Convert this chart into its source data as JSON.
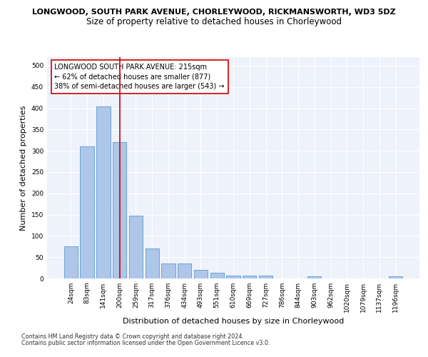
{
  "title": "LONGWOOD, SOUTH PARK AVENUE, CHORLEYWOOD, RICKMANSWORTH, WD3 5DZ",
  "subtitle": "Size of property relative to detached houses in Chorleywood",
  "xlabel": "Distribution of detached houses by size in Chorleywood",
  "ylabel": "Number of detached properties",
  "categories": [
    "24sqm",
    "83sqm",
    "141sqm",
    "200sqm",
    "259sqm",
    "317sqm",
    "376sqm",
    "434sqm",
    "493sqm",
    "551sqm",
    "610sqm",
    "669sqm",
    "727sqm",
    "786sqm",
    "844sqm",
    "903sqm",
    "962sqm",
    "1020sqm",
    "1079sqm",
    "1137sqm",
    "1196sqm"
  ],
  "values": [
    75,
    310,
    405,
    320,
    148,
    70,
    36,
    36,
    20,
    13,
    6,
    6,
    6,
    0,
    0,
    5,
    0,
    0,
    0,
    0,
    5
  ],
  "bar_color": "#aec6e8",
  "bar_edgecolor": "#5b9bd5",
  "vline_x_index": 3,
  "vline_color": "#cc0000",
  "annotation_text": "LONGWOOD SOUTH PARK AVENUE: 215sqm\n← 62% of detached houses are smaller (877)\n38% of semi-detached houses are larger (543) →",
  "annotation_box_color": "#ffffff",
  "annotation_box_edgecolor": "#cc0000",
  "ylim": [
    0,
    520
  ],
  "yticks": [
    0,
    50,
    100,
    150,
    200,
    250,
    300,
    350,
    400,
    450,
    500
  ],
  "footnote1": "Contains HM Land Registry data © Crown copyright and database right 2024.",
  "footnote2": "Contains public sector information licensed under the Open Government Licence v3.0.",
  "title_fontsize": 8.0,
  "subtitle_fontsize": 8.5,
  "tick_fontsize": 6.5,
  "label_fontsize": 8.0,
  "annotation_fontsize": 7.0,
  "footnote_fontsize": 5.8,
  "bg_color": "#eef2fa"
}
